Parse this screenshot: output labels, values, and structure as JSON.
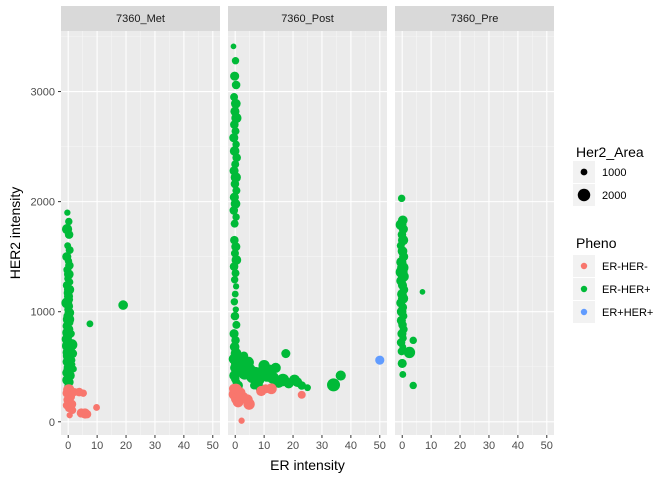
{
  "chart_data": {
    "type": "scatter",
    "faceted_by": "sample",
    "facets": [
      "7360_Met",
      "7360_Post",
      "7360_Pre"
    ],
    "xlabel": "ER intensity",
    "ylabel": "HER2 intensity",
    "xlim": [
      -2.5,
      52.5
    ],
    "ylim": [
      -120,
      3550
    ],
    "x_ticks": [
      0,
      10,
      20,
      30,
      40,
      50
    ],
    "y_ticks": [
      0,
      1000,
      2000,
      3000
    ],
    "grid": true,
    "legend_position": "right",
    "size_legend": {
      "title": "Her2_Area",
      "entries": [
        {
          "label": "1000",
          "value": 1000
        },
        {
          "label": "2000",
          "value": 2000
        }
      ]
    },
    "color_legend": {
      "title": "Pheno",
      "entries": [
        {
          "label": "ER-HER-",
          "color": "#F8766D"
        },
        {
          "label": "ER-HER+",
          "color": "#00BA38"
        },
        {
          "label": "ER+HER+",
          "color": "#619CFF"
        }
      ]
    },
    "series": [
      {
        "facet": "7360_Met",
        "pheno": "ER-HER+",
        "points": [
          [
            -0.3,
            1900,
            900
          ],
          [
            0.2,
            1820,
            1100
          ],
          [
            -0.4,
            1750,
            1600
          ],
          [
            0.3,
            1700,
            1300
          ],
          [
            -0.2,
            1600,
            1000
          ],
          [
            0.5,
            1560,
            1200
          ],
          [
            -0.5,
            1500,
            1400
          ],
          [
            0.1,
            1460,
            1100
          ],
          [
            0.4,
            1420,
            1300
          ],
          [
            -0.3,
            1380,
            1200
          ],
          [
            0.2,
            1340,
            1500
          ],
          [
            -0.1,
            1300,
            1100
          ],
          [
            0.6,
            1270,
            1000
          ],
          [
            -0.4,
            1240,
            1300
          ],
          [
            0.3,
            1200,
            1600
          ],
          [
            -0.2,
            1170,
            1200
          ],
          [
            0.1,
            1140,
            1400
          ],
          [
            0.5,
            1110,
            1000
          ],
          [
            -0.5,
            1080,
            1700
          ],
          [
            0.2,
            1050,
            1300
          ],
          [
            -0.1,
            1020,
            1100
          ],
          [
            0.4,
            990,
            1500
          ],
          [
            -0.3,
            960,
            1200
          ],
          [
            0.1,
            930,
            1800
          ],
          [
            0.6,
            900,
            1000
          ],
          [
            -0.4,
            870,
            1400
          ],
          [
            0.3,
            840,
            1300
          ],
          [
            -0.2,
            810,
            1700
          ],
          [
            0.2,
            780,
            1100
          ],
          [
            -0.5,
            750,
            1600
          ],
          [
            0.5,
            720,
            1200
          ],
          [
            -0.1,
            690,
            1900
          ],
          [
            0.3,
            660,
            1300
          ],
          [
            -0.3,
            630,
            1500
          ],
          [
            0.1,
            600,
            1800
          ],
          [
            0.7,
            570,
            1100
          ],
          [
            -0.4,
            545,
            1400
          ],
          [
            0.4,
            520,
            1600
          ],
          [
            -0.2,
            495,
            1200
          ],
          [
            0.2,
            470,
            1700
          ],
          [
            -0.6,
            445,
            1300
          ],
          [
            0.6,
            420,
            1500
          ],
          [
            0.0,
            400,
            1100
          ],
          [
            -0.3,
            380,
            1600
          ],
          [
            0.4,
            360,
            1300
          ],
          [
            0.1,
            340,
            1200
          ],
          [
            -0.2,
            320,
            1000
          ],
          [
            0.3,
            300,
            900
          ],
          [
            1.2,
            700,
            1800
          ],
          [
            1.5,
            620,
            1400
          ],
          [
            1.1,
            560,
            1200
          ],
          [
            1.8,
            480,
            1000
          ],
          [
            1.0,
            800,
            1100
          ],
          [
            1.4,
            520,
            900
          ],
          [
            7.5,
            890,
            1000
          ],
          [
            19,
            1060,
            1500
          ]
        ]
      },
      {
        "facet": "7360_Met",
        "pheno": "ER-HER-",
        "points": [
          [
            0.2,
            290,
            1800
          ],
          [
            -0.4,
            260,
            1400
          ],
          [
            0.6,
            230,
            1600
          ],
          [
            -0.2,
            200,
            1300
          ],
          [
            0.4,
            175,
            1500
          ],
          [
            1.2,
            160,
            1400
          ],
          [
            -0.5,
            150,
            1200
          ],
          [
            0.8,
            135,
            1300
          ],
          [
            0.1,
            120,
            1000
          ],
          [
            1.5,
            105,
            1100
          ],
          [
            2.2,
            270,
            1200
          ],
          [
            3.8,
            270,
            1300
          ],
          [
            5.2,
            260,
            1100
          ],
          [
            4.5,
            80,
            1400
          ],
          [
            5.8,
            75,
            1600
          ],
          [
            6.5,
            70,
            1300
          ],
          [
            9.8,
            130,
            1000
          ],
          [
            0.5,
            60,
            900
          ]
        ]
      },
      {
        "facet": "7360_Post",
        "pheno": "ER-HER+",
        "points": [
          [
            -0.6,
            3410,
            800
          ],
          [
            0.1,
            3280,
            1100
          ],
          [
            -0.2,
            3140,
            1400
          ],
          [
            0.3,
            3060,
            1300
          ],
          [
            -0.4,
            2950,
            1200
          ],
          [
            0.2,
            2890,
            1500
          ],
          [
            -0.1,
            2820,
            1400
          ],
          [
            0.4,
            2760,
            1600
          ],
          [
            -0.3,
            2700,
            1300
          ],
          [
            0.1,
            2640,
            1200
          ],
          [
            -0.5,
            2580,
            1400
          ],
          [
            0.3,
            2520,
            1100
          ],
          [
            -0.2,
            2460,
            1500
          ],
          [
            0.5,
            2400,
            1300
          ],
          [
            0.0,
            2340,
            1200
          ],
          [
            -0.4,
            2280,
            1400
          ],
          [
            0.2,
            2220,
            1600
          ],
          [
            -0.1,
            2160,
            1300
          ],
          [
            0.4,
            2100,
            1200
          ],
          [
            -0.3,
            2040,
            1400
          ],
          [
            0.1,
            1980,
            1500
          ],
          [
            -0.5,
            1920,
            1300
          ],
          [
            0.3,
            1860,
            1100
          ],
          [
            -0.2,
            1800,
            1200
          ],
          [
            -0.3,
            1650,
            1300
          ],
          [
            0.2,
            1590,
            1400
          ],
          [
            -0.1,
            1530,
            1200
          ],
          [
            0.4,
            1470,
            1500
          ],
          [
            -0.4,
            1410,
            1300
          ],
          [
            0.1,
            1350,
            1200
          ],
          [
            -0.2,
            1290,
            1100
          ],
          [
            0.3,
            1230,
            900
          ],
          [
            0.0,
            1160,
            1000
          ],
          [
            -0.3,
            1090,
            1100
          ],
          [
            0.2,
            1020,
            900
          ],
          [
            -0.1,
            960,
            1300
          ],
          [
            0.4,
            880,
            1200
          ],
          [
            -0.4,
            800,
            1400
          ],
          [
            0.1,
            740,
            1300
          ],
          [
            -0.2,
            680,
            1500
          ],
          [
            0.3,
            620,
            1700
          ],
          [
            -0.5,
            570,
            1600
          ],
          [
            0.5,
            530,
            1800
          ],
          [
            -0.1,
            490,
            1500
          ],
          [
            0.2,
            455,
            1400
          ],
          [
            -0.3,
            420,
            1600
          ],
          [
            0.0,
            390,
            1300
          ],
          [
            0.4,
            360,
            1200
          ],
          [
            1.5,
            560,
            1700
          ],
          [
            2.5,
            500,
            1900
          ],
          [
            3.2,
            440,
            2000
          ],
          [
            4.5,
            540,
            1800
          ],
          [
            5.2,
            480,
            1600
          ],
          [
            6.0,
            410,
            2100
          ],
          [
            7.0,
            450,
            1700
          ],
          [
            8.0,
            380,
            1900
          ],
          [
            9.0,
            460,
            1500
          ],
          [
            10.0,
            510,
            1800
          ],
          [
            11.0,
            420,
            2000
          ],
          [
            12.0,
            470,
            1700
          ],
          [
            13.0,
            400,
            1900
          ],
          [
            14.0,
            490,
            1600
          ],
          [
            15.0,
            360,
            1800
          ],
          [
            16.5,
            380,
            2000
          ],
          [
            17.5,
            620,
            1400
          ],
          [
            18.5,
            350,
            1600
          ],
          [
            20.5,
            380,
            1700
          ],
          [
            21.5,
            360,
            1500
          ],
          [
            23.0,
            330,
            1300
          ],
          [
            25.0,
            310,
            1000
          ],
          [
            34.0,
            335,
            2100
          ],
          [
            36.5,
            420,
            1600
          ],
          [
            3.0,
            600,
            1300
          ],
          [
            1.0,
            330,
            1500
          ],
          [
            6.5,
            330,
            1200
          ],
          [
            8.5,
            310,
            1400
          ]
        ]
      },
      {
        "facet": "7360_Post",
        "pheno": "ER-HER-",
        "points": [
          [
            0.2,
            290,
            2000
          ],
          [
            -0.3,
            250,
            1800
          ],
          [
            0.6,
            210,
            1900
          ],
          [
            1.0,
            180,
            1700
          ],
          [
            1.8,
            265,
            1600
          ],
          [
            -0.5,
            300,
            1500
          ],
          [
            4.2,
            200,
            1700
          ],
          [
            4.8,
            160,
            1800
          ],
          [
            9.0,
            280,
            1600
          ],
          [
            10.5,
            300,
            1400
          ],
          [
            12.5,
            300,
            1700
          ],
          [
            23.0,
            245,
            1200
          ],
          [
            2.2,
            10,
            900
          ],
          [
            3.0,
            230,
            1300
          ]
        ]
      },
      {
        "facet": "7360_Post",
        "pheno": "ER+HER+",
        "points": [
          [
            50.0,
            560,
            1400
          ]
        ]
      },
      {
        "facet": "7360_Pre",
        "pheno": "ER-HER+",
        "points": [
          [
            -0.2,
            2030,
            1100
          ],
          [
            0.2,
            1830,
            1500
          ],
          [
            -0.4,
            1790,
            1700
          ],
          [
            0.4,
            1750,
            1400
          ],
          [
            -0.1,
            1700,
            1300
          ],
          [
            0.3,
            1650,
            1600
          ],
          [
            -0.5,
            1600,
            1200
          ],
          [
            0.1,
            1550,
            1500
          ],
          [
            0.5,
            1500,
            1400
          ],
          [
            -0.3,
            1450,
            1600
          ],
          [
            0.2,
            1400,
            1800
          ],
          [
            -0.2,
            1360,
            1900
          ],
          [
            0.4,
            1320,
            1700
          ],
          [
            -0.4,
            1280,
            1500
          ],
          [
            0.1,
            1240,
            1400
          ],
          [
            0.6,
            1200,
            1300
          ],
          [
            -0.1,
            1160,
            1500
          ],
          [
            0.3,
            1120,
            1600
          ],
          [
            -0.5,
            1080,
            1400
          ],
          [
            0.2,
            1040,
            1300
          ],
          [
            -0.2,
            1000,
            1500
          ],
          [
            0.4,
            960,
            1200
          ],
          [
            -0.3,
            920,
            1400
          ],
          [
            0.1,
            880,
            1300
          ],
          [
            0.5,
            840,
            1200
          ],
          [
            -0.1,
            800,
            1400
          ],
          [
            0.3,
            760,
            1100
          ],
          [
            -0.4,
            720,
            1300
          ],
          [
            0.2,
            680,
            1000
          ],
          [
            -0.2,
            640,
            1200
          ],
          [
            0.0,
            530,
            1400
          ],
          [
            0.2,
            430,
            1000
          ],
          [
            2.5,
            630,
            1800
          ],
          [
            3.8,
            740,
            1100
          ],
          [
            3.8,
            330,
            1100
          ],
          [
            7.0,
            1180,
            800
          ]
        ]
      }
    ]
  }
}
